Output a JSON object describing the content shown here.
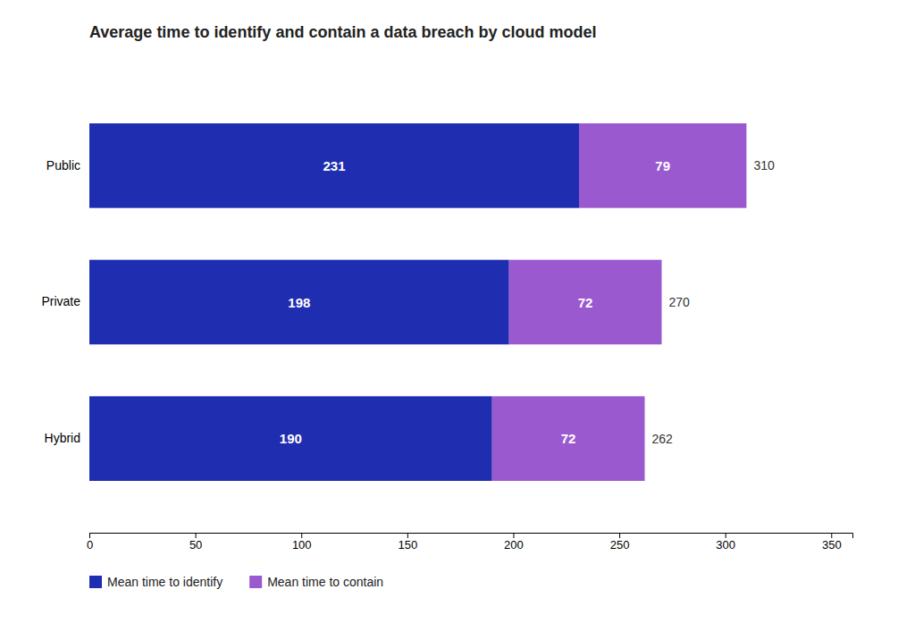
{
  "chart_data": {
    "type": "bar",
    "orientation": "horizontal",
    "stacked": true,
    "data_labels": true,
    "title": "Average time to identify and contain a data breach by cloud model",
    "categories": [
      "Public",
      "Private",
      "Hybrid"
    ],
    "series": [
      {
        "name": "Mean time to identify",
        "color": "#1f2db0",
        "values": [
          231,
          198,
          190
        ]
      },
      {
        "name": "Mean time to contain",
        "color": "#9b59d0",
        "values": [
          79,
          72,
          72
        ]
      }
    ],
    "totals": [
      310,
      270,
      262
    ],
    "xlim": [
      0,
      360
    ],
    "xticks": [
      0,
      50,
      100,
      150,
      200,
      250,
      300,
      350
    ],
    "grid": false,
    "legend": "bottom"
  }
}
